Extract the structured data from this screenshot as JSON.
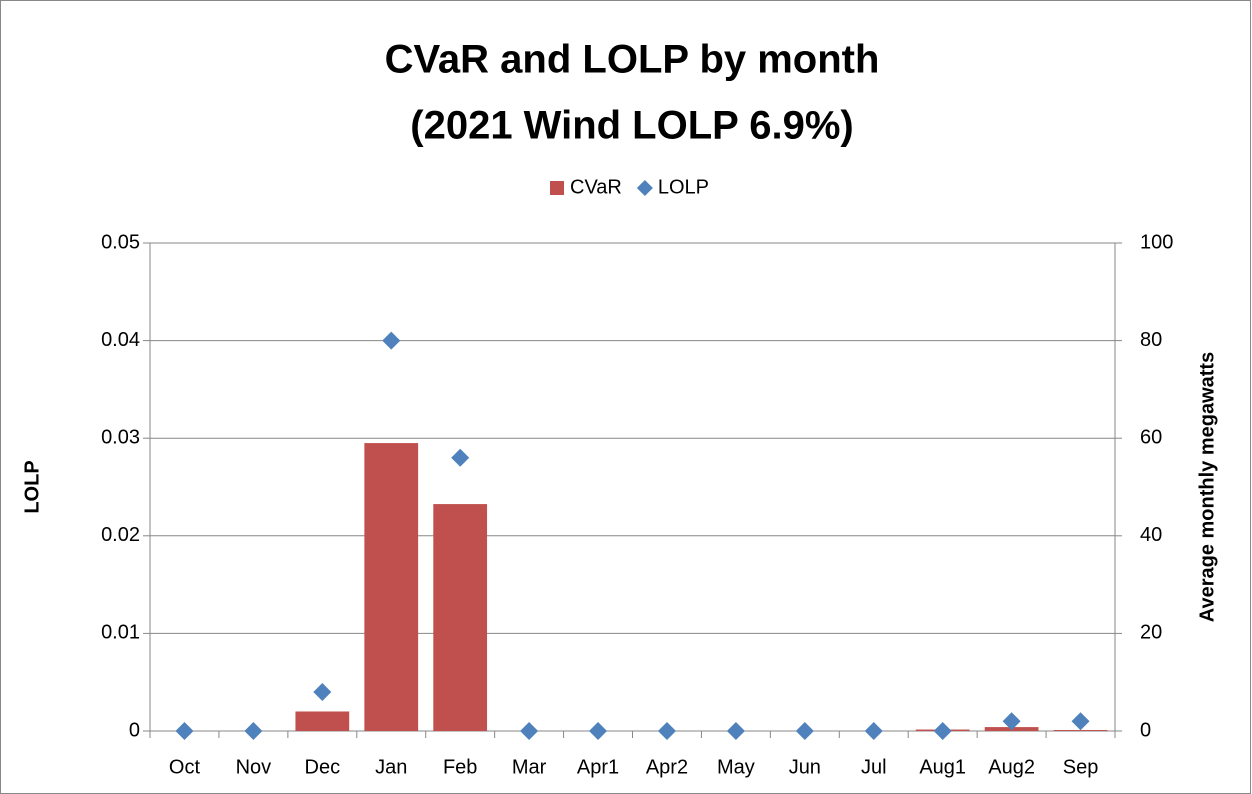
{
  "chart_data": {
    "type": "bar",
    "title": "CVaR and LOLP by month",
    "subtitle": "(2021 Wind LOLP 6.9%)",
    "categories": [
      "Oct",
      "Nov",
      "Dec",
      "Jan",
      "Feb",
      "Mar",
      "Apr1",
      "Apr2",
      "May",
      "Jun",
      "Jul",
      "Aug1",
      "Aug2",
      "Sep"
    ],
    "series": [
      {
        "name": "CVaR",
        "type": "bar",
        "axis": "y2",
        "color": "#c0504d",
        "values": [
          0,
          0,
          4,
          59,
          46.5,
          0,
          0,
          0,
          0,
          0,
          0,
          0.3,
          0.8,
          0.2
        ]
      },
      {
        "name": "LOLP",
        "type": "scatter",
        "axis": "y",
        "color": "#4f81bd",
        "values": [
          0,
          0,
          0.004,
          0.04,
          0.028,
          0,
          0,
          0,
          0,
          0,
          0,
          0,
          0.001,
          0.001
        ]
      }
    ],
    "ylabel": "LOLP",
    "y2label": "Average monthly megawatts",
    "ylim": [
      0,
      0.05
    ],
    "yticks": [
      0,
      0.01,
      0.02,
      0.03,
      0.04,
      0.05
    ],
    "y2lim": [
      0,
      100
    ],
    "y2ticks": [
      0,
      20,
      40,
      60,
      80,
      100
    ],
    "grid": true,
    "legend": "top"
  }
}
